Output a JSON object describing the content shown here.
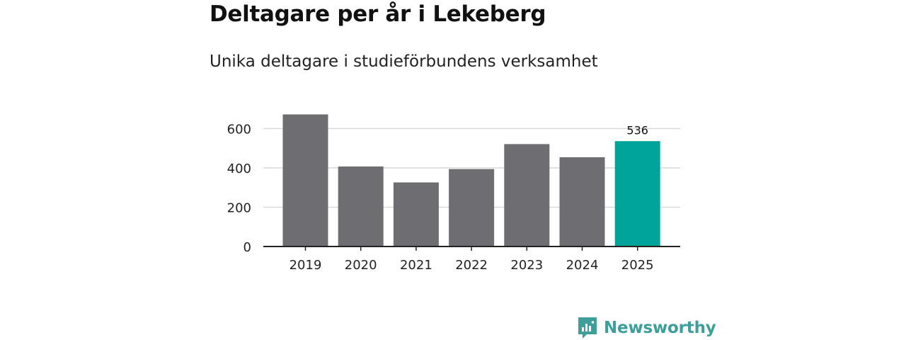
{
  "chart_data": {
    "type": "bar",
    "title": "Deltagare per år i Lekeberg",
    "subtitle": "Unika deltagare i studieförbundens verksamhet",
    "categories": [
      "2019",
      "2020",
      "2021",
      "2022",
      "2023",
      "2024",
      "2025"
    ],
    "values": [
      672,
      407,
      326,
      394,
      521,
      454,
      536
    ],
    "data_labels": [
      {
        "category": "2025",
        "text": "536"
      }
    ],
    "highlight_index": 6,
    "y_ticks": [
      0,
      200,
      400,
      600
    ],
    "y_tick_labels": [
      "0",
      "200",
      "400",
      "600"
    ],
    "ylim": [
      0,
      700
    ],
    "xlabel": "",
    "ylabel": "",
    "grid": true,
    "colors": {
      "bar": "#6e6d72",
      "highlight": "#00a499",
      "grid": "#d9d9d9",
      "axis": "#222222"
    }
  },
  "brand": {
    "name": "Newsworthy",
    "logo_icon": "newsworthy-logo-icon",
    "color": "#3d9e9a"
  }
}
